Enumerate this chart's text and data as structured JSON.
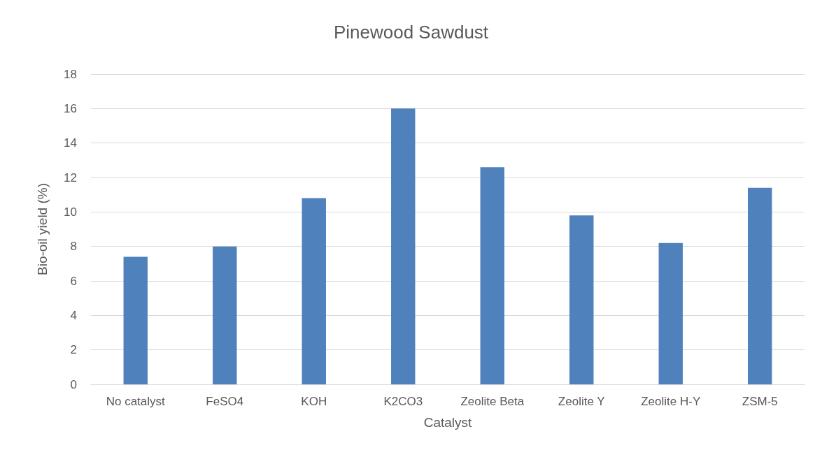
{
  "chart_data": {
    "type": "bar",
    "title": "Pinewood Sawdust",
    "xlabel": "Catalyst",
    "ylabel": "Bio-oil yield (%)",
    "categories": [
      "No catalyst",
      "FeSO4",
      "KOH",
      "K2CO3",
      "Zeolite Beta",
      "Zeolite Y",
      "Zeolite H-Y",
      "ZSM-5"
    ],
    "values": [
      7.4,
      8.0,
      10.8,
      16.0,
      12.6,
      9.8,
      8.2,
      11.4
    ],
    "color": "#4f81bd",
    "ylim": [
      0,
      18
    ],
    "yticks": [
      0,
      2,
      4,
      6,
      8,
      10,
      12,
      14,
      16,
      18
    ],
    "grid": "y"
  }
}
